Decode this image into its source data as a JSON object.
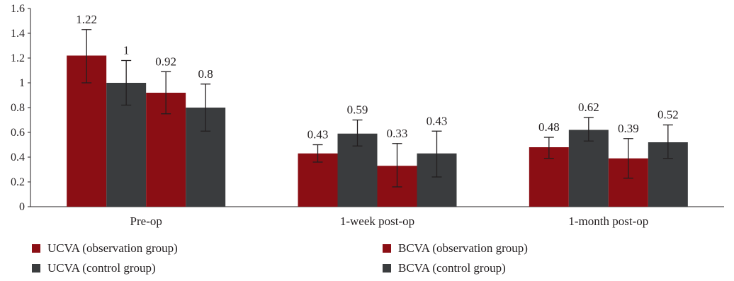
{
  "chart_data": {
    "type": "bar",
    "categories": [
      "Pre-op",
      "1-week post-op",
      "1-month post-op"
    ],
    "ylim": [
      0,
      1.6
    ],
    "yticks": [
      "0",
      "0.2",
      "0.4",
      "0.6",
      "0.8",
      "1",
      "1.2",
      "1.4",
      "1.6"
    ],
    "grid": false,
    "legend_position": "bottom",
    "series": [
      {
        "name": "UCVA (observation group)",
        "color": "#8b0e14",
        "values": [
          1.22,
          0.43,
          0.48
        ],
        "labels": [
          "1.22",
          "0.43",
          "0.48"
        ],
        "error_low": [
          1.0,
          0.36,
          0.39
        ],
        "error_high": [
          1.43,
          0.5,
          0.56
        ]
      },
      {
        "name": "UCVA (control group)",
        "color": "#3a3c3e",
        "values": [
          1.0,
          0.59,
          0.62
        ],
        "labels": [
          "1",
          "0.59",
          "0.62"
        ],
        "error_low": [
          0.82,
          0.49,
          0.53
        ],
        "error_high": [
          1.18,
          0.7,
          0.72
        ]
      },
      {
        "name": "BCVA (observation group)",
        "color": "#8b0e14",
        "values": [
          0.92,
          0.33,
          0.39
        ],
        "labels": [
          "0.92",
          "0.33",
          "0.39"
        ],
        "error_low": [
          0.75,
          0.16,
          0.23
        ],
        "error_high": [
          1.09,
          0.51,
          0.55
        ]
      },
      {
        "name": "BCVA (control group)",
        "color": "#3a3c3e",
        "values": [
          0.8,
          0.43,
          0.52
        ],
        "labels": [
          "0.8",
          "0.43",
          "0.52"
        ],
        "error_low": [
          0.61,
          0.24,
          0.39
        ],
        "error_high": [
          0.99,
          0.61,
          0.66
        ]
      }
    ]
  }
}
